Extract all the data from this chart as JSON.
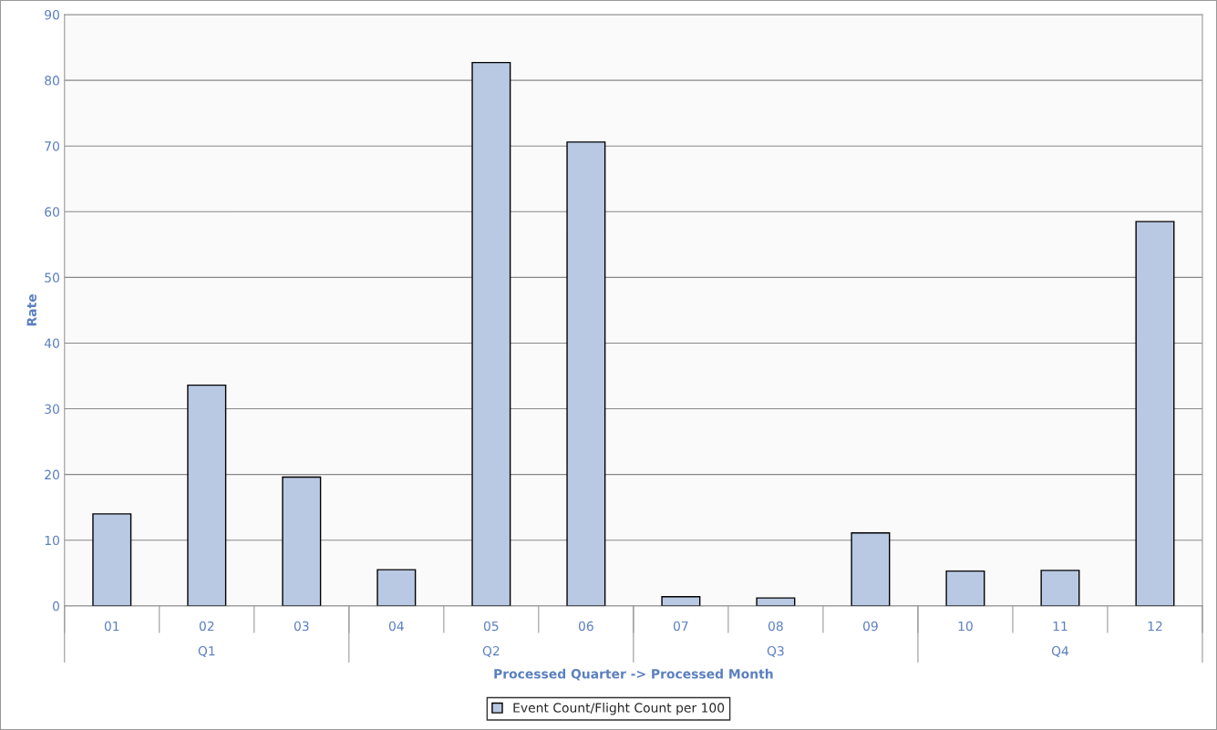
{
  "chart_data": {
    "type": "bar",
    "xlabel": "Processed Quarter -> Processed Month",
    "ylabel": "Rate",
    "categories": [
      "01",
      "02",
      "03",
      "04",
      "05",
      "06",
      "07",
      "08",
      "09",
      "10",
      "11",
      "12"
    ],
    "series": [
      {
        "name": "Event Count/Flight Count per 100",
        "color": "#b9c9e3",
        "values": [
          14.0,
          33.6,
          19.6,
          5.5,
          82.7,
          70.6,
          1.4,
          1.2,
          11.1,
          5.3,
          5.4,
          58.5
        ]
      }
    ],
    "annotations": [
      "Q1",
      "Q2",
      "Q3",
      "Q4"
    ],
    "ylim": [
      0,
      90
    ],
    "yticks": [
      0,
      10,
      20,
      30,
      40,
      50,
      60,
      70,
      80,
      90
    ],
    "grid": "y",
    "legend": "bottom"
  }
}
